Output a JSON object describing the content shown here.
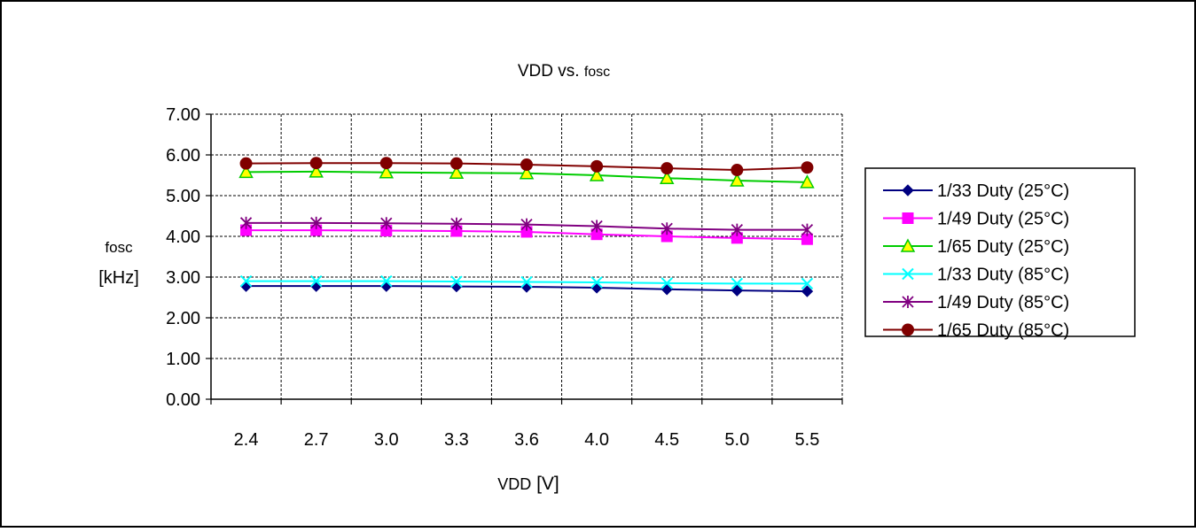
{
  "chart_data": {
    "type": "line",
    "title": {
      "main": "VDD",
      "rest": " vs. ",
      "sub": "fosc"
    },
    "xlabel": {
      "main": "VDD",
      "rest": " [V]"
    },
    "ylabel": {
      "line1": "fosc",
      "line2": "[kHz]"
    },
    "categories": [
      "2.4",
      "2.7",
      "3.0",
      "3.3",
      "3.6",
      "4.0",
      "4.5",
      "5.0",
      "5.5"
    ],
    "ylim": [
      0,
      7
    ],
    "yticks": [
      "0.00",
      "1.00",
      "2.00",
      "3.00",
      "4.00",
      "5.00",
      "6.00",
      "7.00"
    ],
    "grid": true,
    "legend_position": "right",
    "series": [
      {
        "name": "1/33 Duty (25°C)",
        "color": "#000080",
        "fill": "#000080",
        "marker": "diamond",
        "values": [
          2.78,
          2.78,
          2.78,
          2.77,
          2.76,
          2.74,
          2.7,
          2.67,
          2.65
        ]
      },
      {
        "name": "1/49 Duty (25°C)",
        "color": "#ff00ff",
        "fill": "#ff00ff",
        "marker": "square",
        "values": [
          4.15,
          4.15,
          4.14,
          4.13,
          4.11,
          4.05,
          4.0,
          3.96,
          3.93
        ]
      },
      {
        "name": "1/65 Duty (25°C)",
        "color": "#00cc00",
        "fill": "#ffff00",
        "marker": "triangle",
        "values": [
          5.58,
          5.59,
          5.57,
          5.56,
          5.55,
          5.5,
          5.43,
          5.37,
          5.33
        ]
      },
      {
        "name": "1/33 Duty (85°C)",
        "color": "#00ffff",
        "fill": "#00ffff",
        "marker": "x",
        "values": [
          2.9,
          2.9,
          2.9,
          2.89,
          2.88,
          2.87,
          2.85,
          2.84,
          2.84
        ]
      },
      {
        "name": "1/49 Duty (85°C)",
        "color": "#800080",
        "fill": "#800080",
        "marker": "asterisk",
        "values": [
          4.33,
          4.33,
          4.32,
          4.31,
          4.29,
          4.25,
          4.19,
          4.16,
          4.16
        ]
      },
      {
        "name": "1/65 Duty (85°C)",
        "color": "#800000",
        "fill": "#800000",
        "marker": "circle",
        "values": [
          5.79,
          5.8,
          5.8,
          5.79,
          5.76,
          5.72,
          5.67,
          5.63,
          5.69
        ]
      }
    ]
  }
}
